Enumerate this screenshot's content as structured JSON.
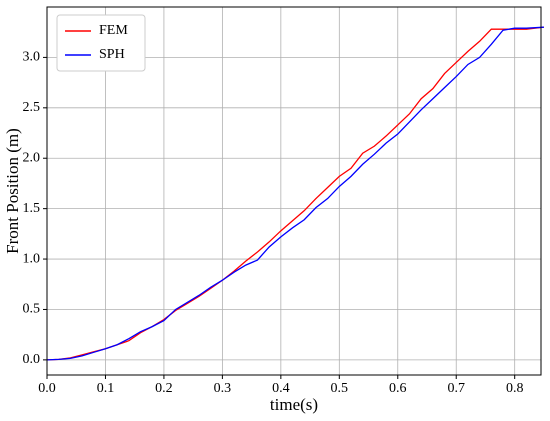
{
  "chart_data": {
    "type": "line",
    "xlabel": "time(s)",
    "ylabel": "Front Position (m)",
    "x": [
      0,
      0.02,
      0.04,
      0.06,
      0.08,
      0.1,
      0.12,
      0.14,
      0.16,
      0.18,
      0.2,
      0.22,
      0.24,
      0.26,
      0.28,
      0.3,
      0.32,
      0.34,
      0.36,
      0.38,
      0.4,
      0.42,
      0.44,
      0.46,
      0.48,
      0.5,
      0.52,
      0.54,
      0.56,
      0.58,
      0.6,
      0.62,
      0.64,
      0.66,
      0.68,
      0.7,
      0.72,
      0.74,
      0.76,
      0.78,
      0.8,
      0.82,
      0.85
    ],
    "series": [
      {
        "name": "FEM",
        "color": "#ff0000",
        "values": [
          0,
          0.005,
          0.02,
          0.05,
          0.08,
          0.11,
          0.15,
          0.19,
          0.27,
          0.33,
          0.4,
          0.49,
          0.56,
          0.63,
          0.71,
          0.79,
          0.88,
          0.98,
          1.07,
          1.17,
          1.28,
          1.38,
          1.48,
          1.6,
          1.71,
          1.82,
          1.9,
          2.05,
          2.12,
          2.22,
          2.33,
          2.44,
          2.59,
          2.69,
          2.84,
          2.95,
          3.06,
          3.16,
          3.28,
          3.28,
          3.28,
          3.28,
          3.3
        ]
      },
      {
        "name": "SPH",
        "color": "#0000ff",
        "values": [
          0,
          0.005,
          0.015,
          0.04,
          0.075,
          0.11,
          0.15,
          0.21,
          0.28,
          0.33,
          0.39,
          0.5,
          0.57,
          0.64,
          0.72,
          0.79,
          0.87,
          0.94,
          0.99,
          1.12,
          1.22,
          1.31,
          1.39,
          1.51,
          1.6,
          1.72,
          1.82,
          1.94,
          2.04,
          2.15,
          2.24,
          2.36,
          2.48,
          2.59,
          2.7,
          2.81,
          2.93,
          3.0,
          3.13,
          3.27,
          3.29,
          3.29,
          3.3
        ]
      }
    ],
    "xlim": [
      0,
      0.845
    ],
    "xticks": [
      {
        "value": 0,
        "label": "0.0"
      },
      0.1,
      0.2,
      0.3,
      0.4,
      0.5,
      0.6,
      0.7,
      0.8
    ],
    "ylim": [
      -0.15,
      3.5
    ],
    "yticks": [
      {
        "value": 0,
        "label": "0.0"
      },
      0.5,
      {
        "value": 1,
        "label": "1.0"
      },
      1.5,
      {
        "value": 2,
        "label": "2.0"
      },
      2.5,
      {
        "value": 3,
        "label": "3.0"
      }
    ],
    "grid": true,
    "legend": "upper left"
  }
}
